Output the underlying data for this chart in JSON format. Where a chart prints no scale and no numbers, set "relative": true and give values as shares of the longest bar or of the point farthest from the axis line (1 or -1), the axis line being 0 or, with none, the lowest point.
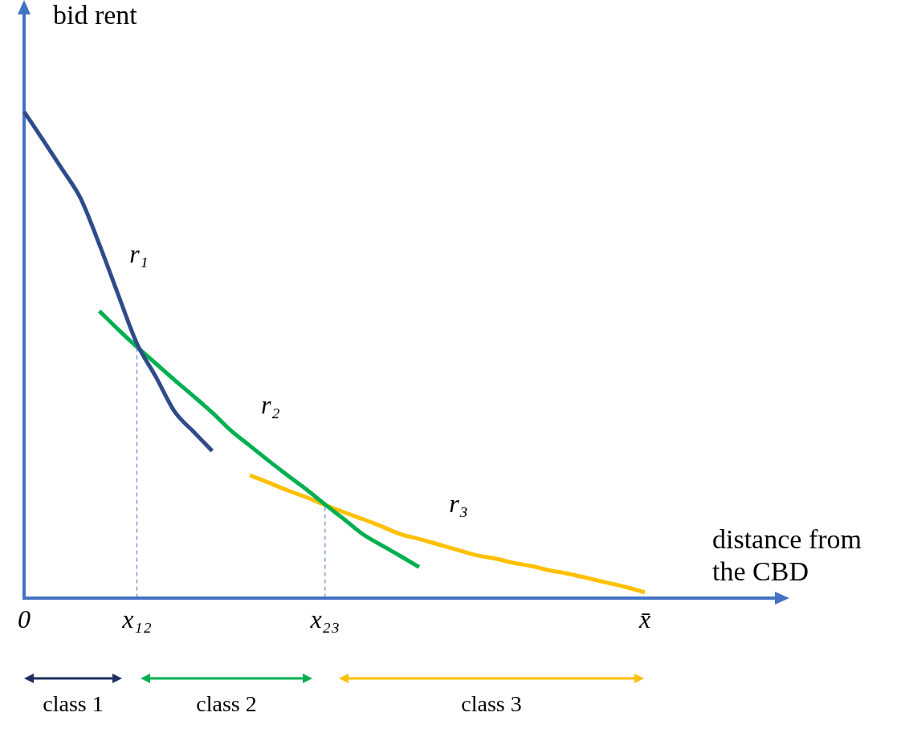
{
  "chart_data": {
    "type": "line",
    "relative": true,
    "ylabel": "bid rent",
    "xlabel": "distance from the CBD",
    "categories": [
      "0",
      null,
      null,
      null,
      null,
      null,
      "x₁₂",
      null,
      null,
      null,
      null,
      null,
      null,
      null,
      null,
      null,
      "x₂₃",
      null,
      null,
      null,
      null,
      null,
      null,
      null,
      null,
      null,
      null,
      null,
      null,
      null,
      null,
      null,
      null,
      "x̄",
      null,
      null,
      null,
      null,
      null,
      null,
      null
    ],
    "tick_labels": "x",
    "legend": false,
    "marker": "none",
    "line_style": "solid",
    "series": [
      {
        "name": "r₁",
        "color": "#2f4b8a",
        "values": [
          1,
          0.942,
          0.883,
          0.822,
          0.727,
          0.624,
          0.523,
          0.455,
          0.383,
          0.342,
          0.302,
          null,
          null,
          null,
          null,
          null,
          null,
          null,
          null,
          null,
          null,
          null,
          null,
          null,
          null,
          null,
          null,
          null,
          null,
          null,
          null,
          null,
          null,
          null,
          null,
          null,
          null,
          null,
          null,
          null,
          null
        ]
      },
      {
        "name": "r₂",
        "color": "#00b050",
        "values": [
          null,
          null,
          null,
          null,
          0.59,
          0.552,
          0.516,
          0.482,
          0.448,
          0.415,
          0.381,
          0.344,
          0.313,
          0.282,
          0.252,
          0.223,
          0.192,
          0.162,
          0.131,
          0.108,
          0.086,
          0.063,
          null,
          null,
          null,
          null,
          null,
          null,
          null,
          null,
          null,
          null,
          null,
          null,
          null,
          null,
          null,
          null,
          null,
          null,
          null
        ]
      },
      {
        "name": "r₃",
        "color": "#ffc000",
        "values": [
          null,
          null,
          null,
          null,
          null,
          null,
          null,
          null,
          null,
          null,
          null,
          null,
          0.252,
          0.237,
          0.221,
          0.207,
          0.191,
          0.176,
          0.162,
          0.147,
          0.131,
          0.121,
          0.11,
          0.099,
          0.088,
          0.081,
          0.072,
          0.065,
          0.056,
          0.049,
          0.04,
          0.031,
          0.022,
          0.011,
          null,
          null,
          null,
          null,
          null,
          null,
          null
        ]
      }
    ],
    "ref_lines": [
      {
        "axis": "x",
        "value": "x₁₂",
        "color": "#4472c4",
        "line_style": "dashed"
      },
      {
        "axis": "x",
        "value": "x₂₃",
        "color": "#4472c4",
        "line_style": "dashed"
      }
    ],
    "annotations": [
      "class 1",
      "class 2",
      "class 3"
    ]
  }
}
